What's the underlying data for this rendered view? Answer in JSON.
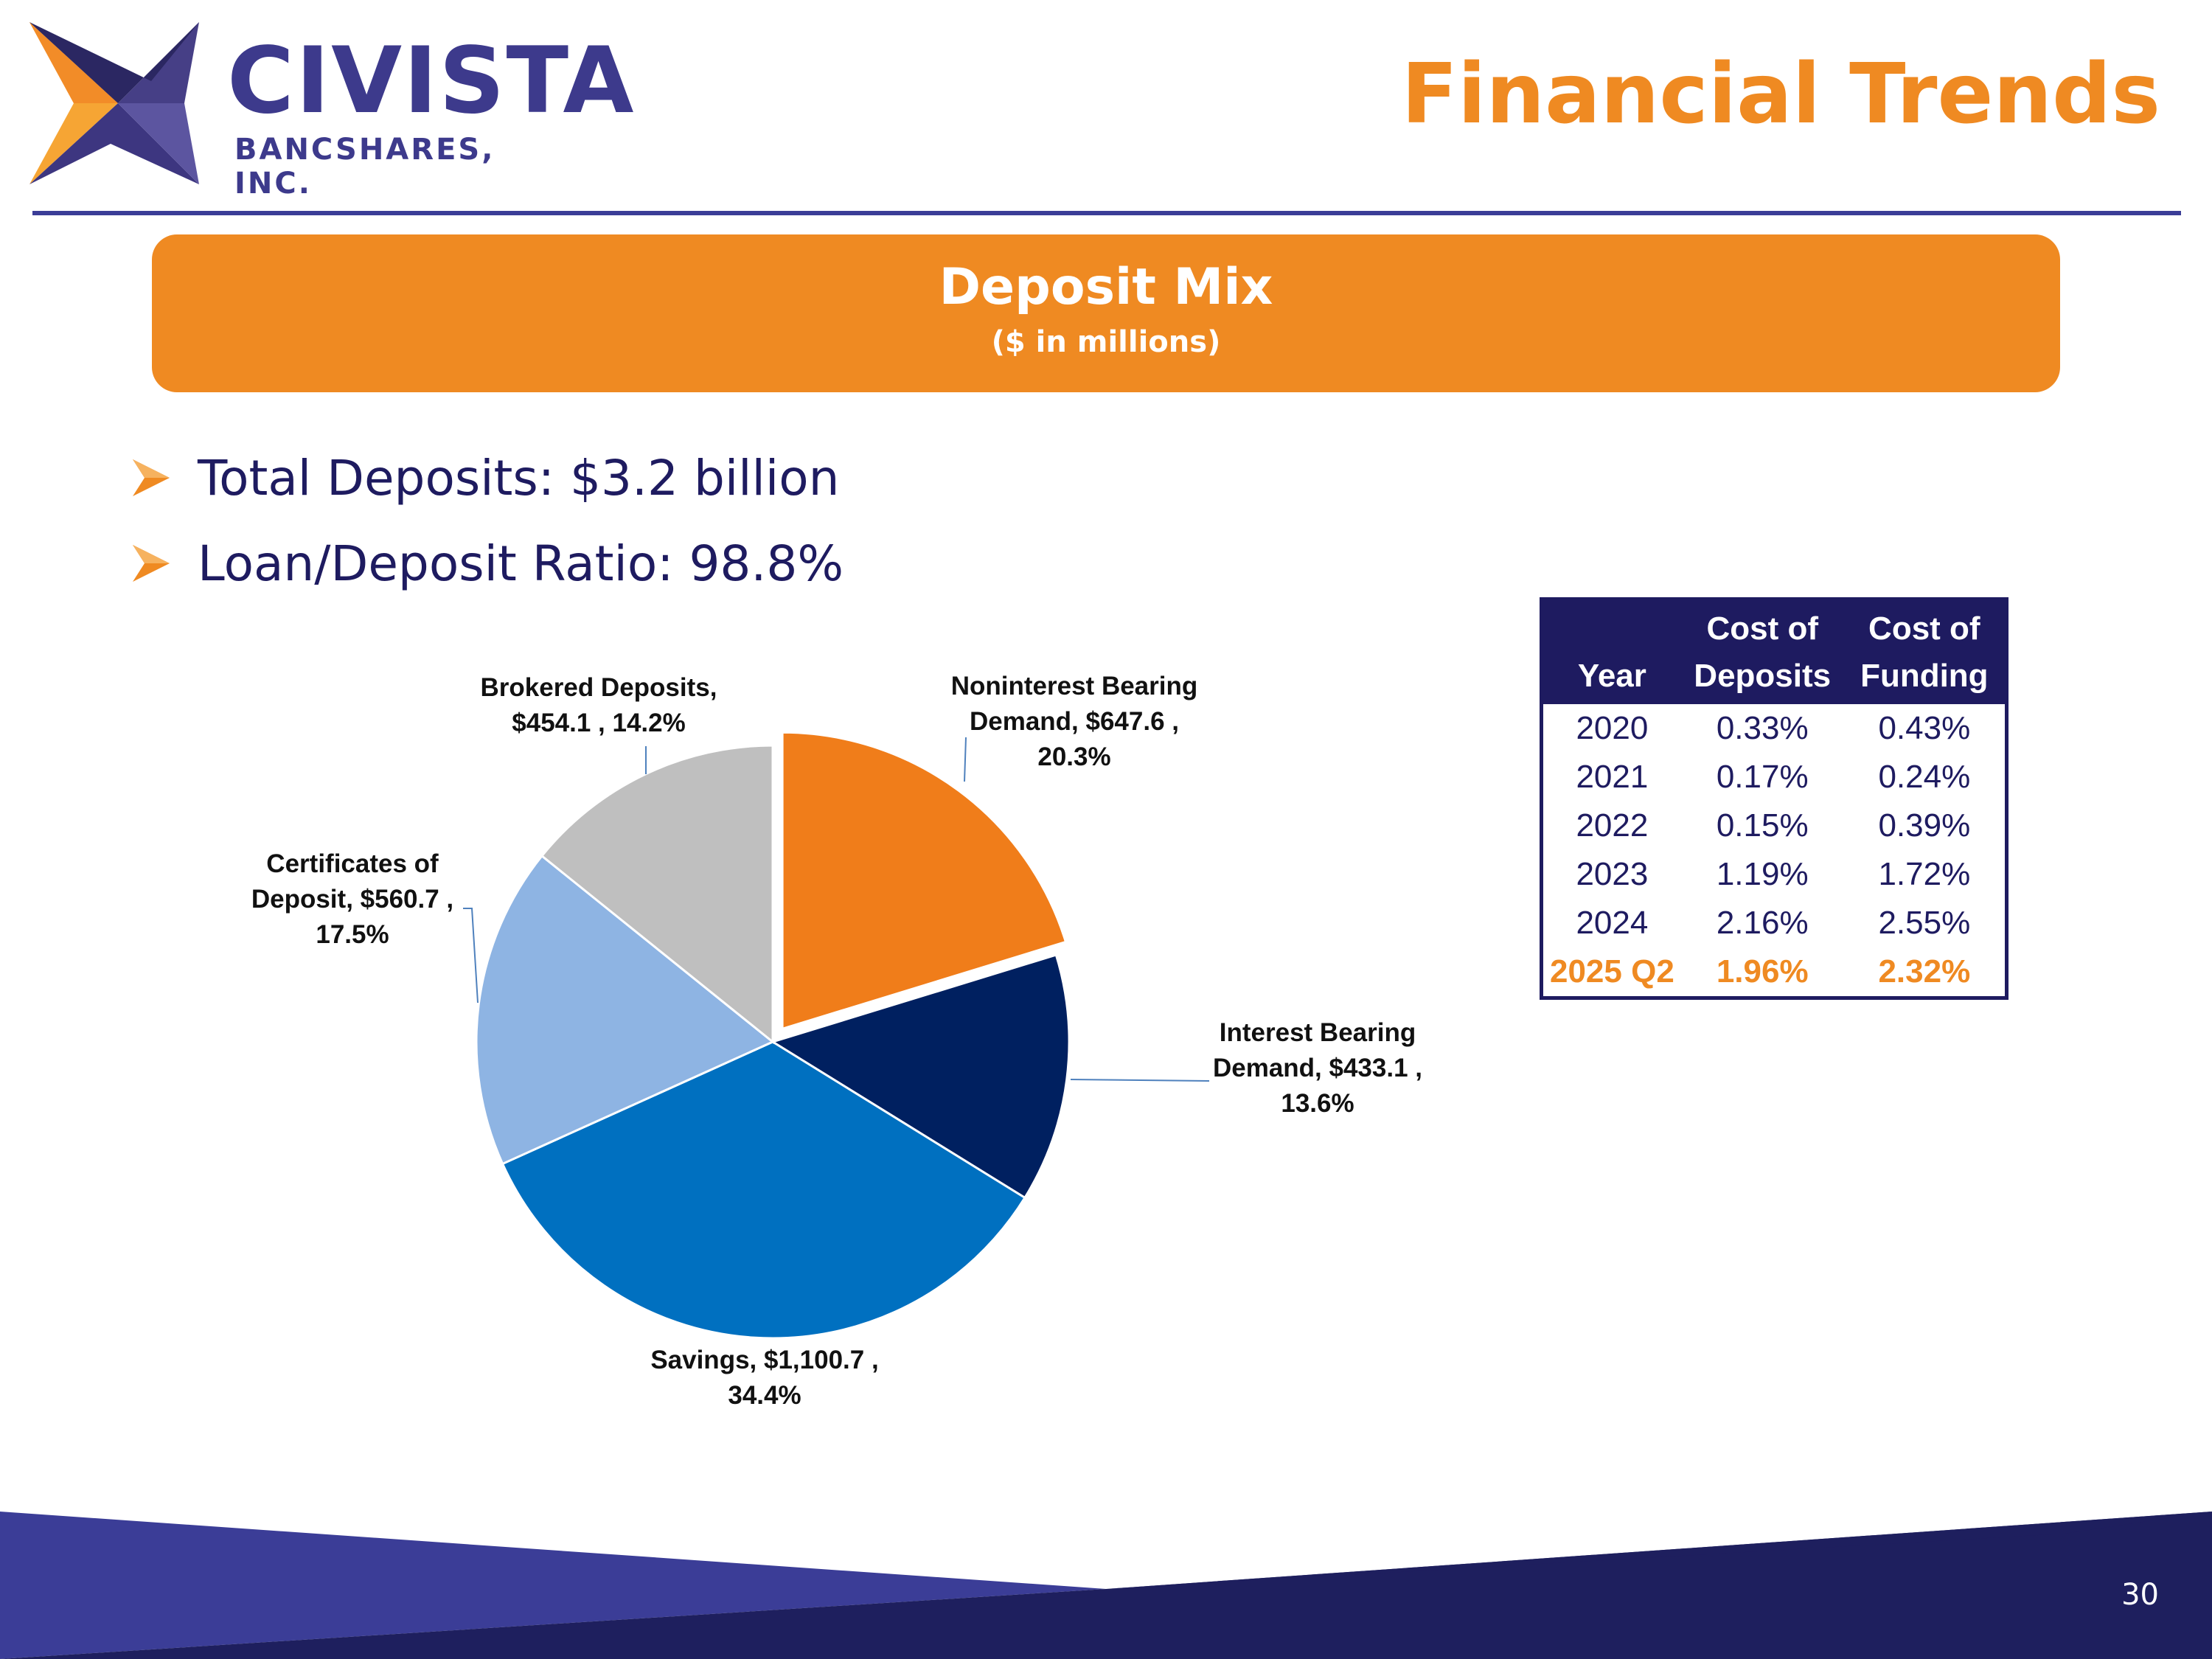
{
  "brand": {
    "name": "CIVISTA",
    "subtitle": "BANCSHARES, INC."
  },
  "header": {
    "title": "Financial Trends"
  },
  "banner": {
    "title": "Deposit Mix",
    "subtitle": "($ in millions)"
  },
  "bullets": [
    "Total Deposits: $3.2 billion",
    "Loan/Deposit Ratio: 98.8%"
  ],
  "colors": {
    "accent_orange": "#ef8a22",
    "navy": "#1e1b60",
    "brand_purple": "#3d3a8c"
  },
  "chart_data": {
    "type": "pie",
    "title": "Deposit Mix",
    "units": "$ in millions",
    "slices": [
      {
        "label": "Noninterest Bearing Demand",
        "value": 647.6,
        "percent": 20.3,
        "color": "#f07d1a",
        "exploded": true,
        "label_lines": [
          "Noninterest Bearing",
          "Demand, $647.6 ,",
          "20.3%"
        ]
      },
      {
        "label": "Interest Bearing Demand",
        "value": 433.1,
        "percent": 13.6,
        "color": "#002060",
        "exploded": false,
        "label_lines": [
          "Interest Bearing",
          "Demand, $433.1 ,",
          "13.6%"
        ]
      },
      {
        "label": "Savings",
        "value": 1100.7,
        "percent": 34.4,
        "color": "#0070c0",
        "exploded": false,
        "label_lines": [
          "Savings, $1,100.7 ,",
          "34.4%"
        ]
      },
      {
        "label": "Certificates of Deposit",
        "value": 560.7,
        "percent": 17.5,
        "color": "#8eb4e3",
        "exploded": false,
        "label_lines": [
          "Certificates of",
          "Deposit, $560.7 ,",
          "17.5%"
        ]
      },
      {
        "label": "Brokered Deposits",
        "value": 454.1,
        "percent": 14.2,
        "color": "#bfbfbf",
        "exploded": false,
        "label_lines": [
          "Brokered Deposits,",
          "$454.1 , 14.2%"
        ]
      }
    ]
  },
  "cost_table": {
    "headers": [
      {
        "line1": "",
        "line2": "Year"
      },
      {
        "line1": "Cost of",
        "line2": "Deposits"
      },
      {
        "line1": "Cost of",
        "line2": "Funding"
      }
    ],
    "rows": [
      [
        "2020",
        "0.33%",
        "0.43%"
      ],
      [
        "2021",
        "0.17%",
        "0.24%"
      ],
      [
        "2022",
        "0.15%",
        "0.39%"
      ],
      [
        "2023",
        "1.19%",
        "1.72%"
      ],
      [
        "2024",
        "2.16%",
        "2.55%"
      ],
      [
        "2025 Q2",
        "1.96%",
        "2.32%"
      ]
    ],
    "highlight_row": 5
  },
  "footer": {
    "page_number": "30"
  }
}
